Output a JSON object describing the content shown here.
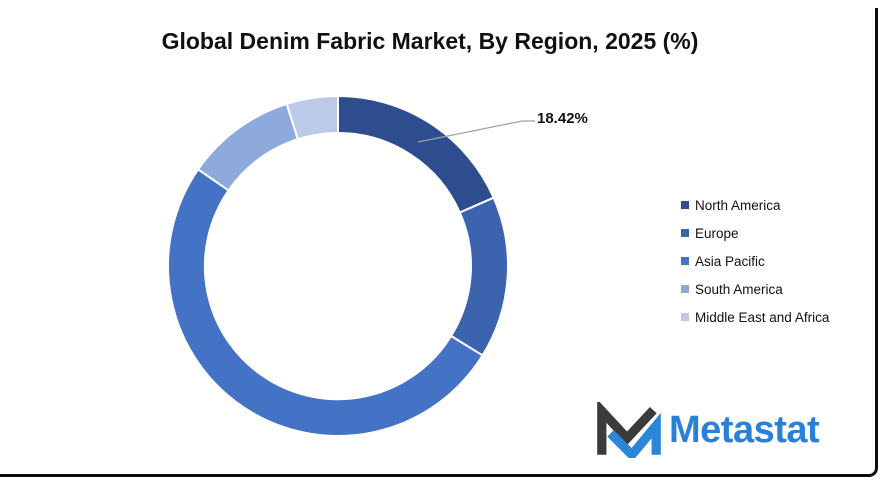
{
  "title": "Global Denim Fabric Market, By Region, 2025 (%)",
  "annotation": {
    "label": "18.42%"
  },
  "chart_data": {
    "type": "pie",
    "subtype": "donut",
    "title": "Global Denim Fabric Market, By Region, 2025 (%)",
    "categories": [
      "North America",
      "Europe",
      "Asia Pacific",
      "South America",
      "Middle East and Africa"
    ],
    "values": [
      18.42,
      15.4,
      50.8,
      10.5,
      4.88
    ],
    "colors": [
      "#2E4D8E",
      "#3C64AE",
      "#4472C4",
      "#8EA9DB",
      "#BDC9E8"
    ],
    "hole_ratio": 0.78,
    "start_angle_deg": 0,
    "direction": "clockwise",
    "legend_position": "right",
    "data_labels": [
      {
        "series": "North America",
        "text": "18.42%"
      }
    ],
    "leader_line_color": "#a0a0a0",
    "slice_gap_color": "#ffffff"
  },
  "logo": {
    "text": "Metastat",
    "text_color": "#2980d9",
    "mark_dark_color": "#3b3b3b",
    "mark_blue_color": "#2986d8"
  }
}
